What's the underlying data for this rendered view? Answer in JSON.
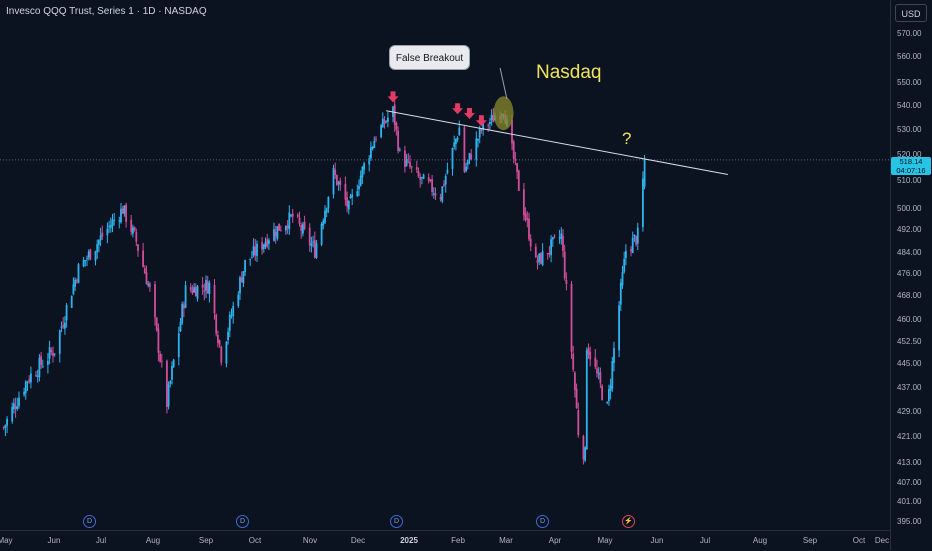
{
  "header": {
    "title": "Invesco QQQ Trust, Series 1 · 1D · NASDAQ",
    "currency_button": "USD"
  },
  "annotations": {
    "callout": "False Breakout",
    "label": "Nasdaq",
    "question": "?"
  },
  "price_tag": {
    "price": "518.14",
    "countdown": "04:07:16"
  },
  "events": [
    {
      "icon": "D"
    },
    {
      "icon": "D"
    },
    {
      "icon": "D"
    },
    {
      "icon": "D"
    },
    {
      "icon": "⚡"
    }
  ],
  "colors": {
    "up": "#2db4f0",
    "down": "#d24e9a",
    "trendline": "#d8dce4",
    "callout_highlight": "#8a8a2a",
    "arrow": "#e23a67",
    "text_yellow": "#f2e35b"
  },
  "chart_data": {
    "type": "candlestick",
    "symbol": "QQQ",
    "timeframe": "1D",
    "ylim": [
      395,
      578
    ],
    "y_ticks": [
      570,
      560,
      550,
      540,
      530,
      520,
      510,
      500,
      492,
      484,
      476,
      468,
      460,
      452.5,
      445,
      437,
      429,
      421,
      413,
      407,
      401,
      395
    ],
    "y_tick_labels": [
      "570.00",
      "560.00",
      "550.00",
      "540.00",
      "530.00",
      "520.00",
      "510.00",
      "500.00",
      "492.00",
      "484.00",
      "476.00",
      "468.00",
      "460.00",
      "452.50",
      "445.00",
      "437.00",
      "429.00",
      "421.00",
      "413.00",
      "407.00",
      "401.00",
      "395.00"
    ],
    "x_tick_labels": [
      "May",
      "Jun",
      "Jul",
      "Aug",
      "Sep",
      "Oct",
      "Nov",
      "Dec",
      "2025",
      "Feb",
      "Mar",
      "Apr",
      "May",
      "Jun",
      "Jul",
      "Aug",
      "Sep",
      "Oct",
      "Dec"
    ],
    "close_path": [
      {
        "date": "2024-05-01",
        "close": 424
      },
      {
        "date": "2024-05-15",
        "close": 440
      },
      {
        "date": "2024-05-31",
        "close": 450
      },
      {
        "date": "2024-06-14",
        "close": 478
      },
      {
        "date": "2024-06-28",
        "close": 490
      },
      {
        "date": "2024-07-10",
        "close": 500
      },
      {
        "date": "2024-07-18",
        "close": 488
      },
      {
        "date": "2024-07-26",
        "close": 470
      },
      {
        "date": "2024-08-05",
        "close": 432
      },
      {
        "date": "2024-08-16",
        "close": 470
      },
      {
        "date": "2024-08-30",
        "close": 472
      },
      {
        "date": "2024-09-06",
        "close": 448
      },
      {
        "date": "2024-09-20",
        "close": 480
      },
      {
        "date": "2024-10-04",
        "close": 490
      },
      {
        "date": "2024-10-18",
        "close": 497
      },
      {
        "date": "2024-10-31",
        "close": 485
      },
      {
        "date": "2024-11-11",
        "close": 513
      },
      {
        "date": "2024-11-20",
        "close": 500
      },
      {
        "date": "2024-12-06",
        "close": 528
      },
      {
        "date": "2024-12-16",
        "close": 538
      },
      {
        "date": "2024-12-20",
        "close": 520
      },
      {
        "date": "2024-12-31",
        "close": 511
      },
      {
        "date": "2025-01-13",
        "close": 505
      },
      {
        "date": "2025-01-24",
        "close": 531
      },
      {
        "date": "2025-01-27",
        "close": 514
      },
      {
        "date": "2025-02-06",
        "close": 530
      },
      {
        "date": "2025-02-19",
        "close": 539
      },
      {
        "date": "2025-02-28",
        "close": 508
      },
      {
        "date": "2025-03-10",
        "close": 480
      },
      {
        "date": "2025-03-25",
        "close": 490
      },
      {
        "date": "2025-04-04",
        "close": 423
      },
      {
        "date": "2025-04-08",
        "close": 415
      },
      {
        "date": "2025-04-09",
        "close": 452
      },
      {
        "date": "2025-04-21",
        "close": 430
      },
      {
        "date": "2025-05-02",
        "close": 485
      },
      {
        "date": "2025-05-09",
        "close": 490
      },
      {
        "date": "2025-05-12",
        "close": 510
      },
      {
        "date": "2025-05-13",
        "close": 518.14
      }
    ],
    "last_price": 518.14
  }
}
